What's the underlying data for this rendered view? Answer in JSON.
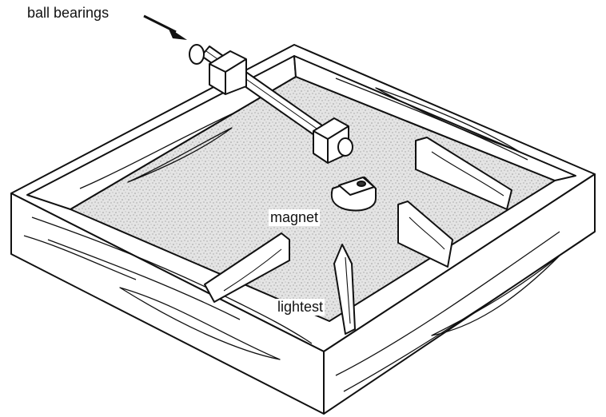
{
  "labels": {
    "ball_bearings": "ball bearings",
    "magnet": "magnet",
    "lightest": "lightest"
  },
  "colors": {
    "ink": "#111111",
    "floor": "#dedede",
    "wood": "#ffffff"
  }
}
